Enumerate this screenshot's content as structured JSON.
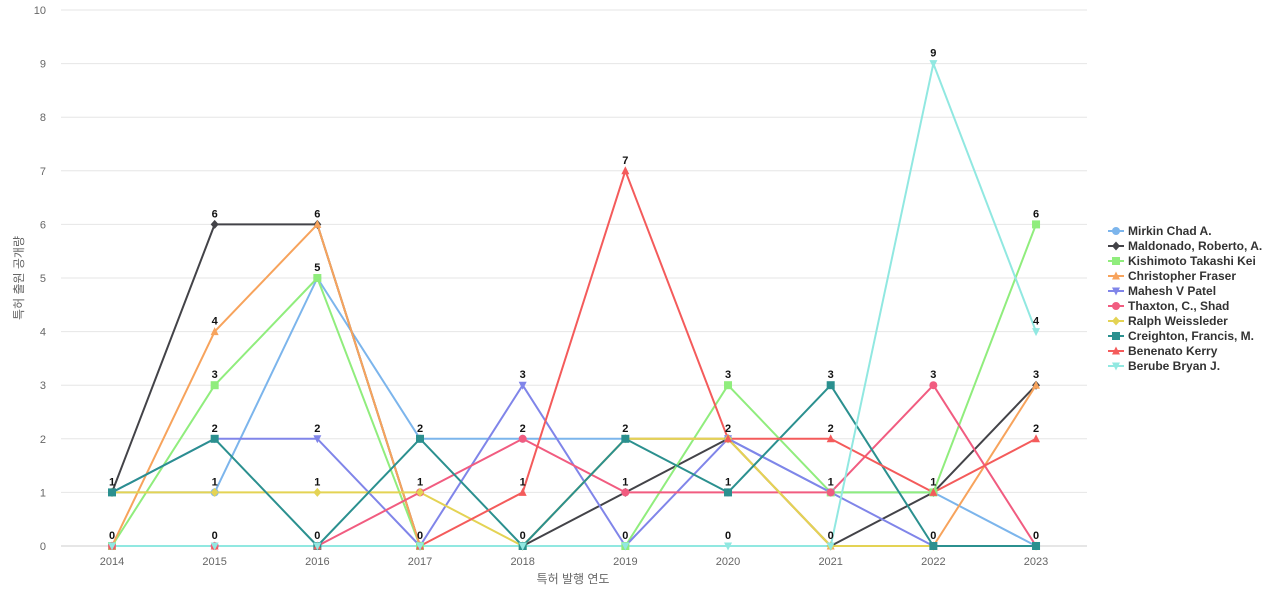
{
  "chart_data": {
    "type": "line",
    "title": "",
    "xlabel": "특허 발행 연도",
    "ylabel": "특허 출원 공개량",
    "ylim": [
      0,
      10
    ],
    "yticks": [
      0,
      1,
      2,
      3,
      4,
      5,
      6,
      7,
      8,
      9,
      10
    ],
    "categories": [
      "2014",
      "2015",
      "2016",
      "2017",
      "2018",
      "2019",
      "2020",
      "2021",
      "2022",
      "2023"
    ],
    "grid": true,
    "legend_position": "right",
    "series": [
      {
        "name": "Mirkin Chad A.",
        "color": "#7cb5ec",
        "marker": "circle",
        "values": [
          1,
          1,
          5,
          2,
          2,
          2,
          2,
          1,
          1,
          0
        ]
      },
      {
        "name": "Maldonado, Roberto, A.",
        "color": "#434348",
        "marker": "diamond",
        "values": [
          1,
          6,
          6,
          0,
          0,
          1,
          2,
          0,
          1,
          3
        ]
      },
      {
        "name": "Kishimoto Takashi Kei",
        "color": "#90ed7d",
        "marker": "square",
        "values": [
          0,
          3,
          5,
          0,
          0,
          0,
          3,
          1,
          1,
          6
        ]
      },
      {
        "name": "Christopher Fraser",
        "color": "#f7a35c",
        "marker": "triangle",
        "values": [
          0,
          4,
          6,
          0,
          0,
          2,
          2,
          0,
          0,
          3
        ]
      },
      {
        "name": "Mahesh V Patel",
        "color": "#8085e9",
        "marker": "triangle-down",
        "values": [
          1,
          2,
          2,
          0,
          3,
          0,
          2,
          1,
          0,
          0
        ]
      },
      {
        "name": "Thaxton, C., Shad",
        "color": "#f15c80",
        "marker": "circle",
        "values": [
          0,
          0,
          0,
          1,
          2,
          1,
          1,
          1,
          3,
          0
        ]
      },
      {
        "name": "Ralph Weissleder",
        "color": "#e4d354",
        "marker": "diamond",
        "values": [
          1,
          1,
          1,
          1,
          0,
          2,
          2,
          0,
          0,
          0
        ]
      },
      {
        "name": "Creighton, Francis, M.",
        "color": "#2b908f",
        "marker": "square",
        "values": [
          1,
          2,
          0,
          2,
          0,
          2,
          1,
          3,
          0,
          0
        ]
      },
      {
        "name": "Benenato Kerry",
        "color": "#f45b5b",
        "marker": "triangle",
        "values": [
          0,
          0,
          0,
          0,
          1,
          7,
          2,
          2,
          1,
          2
        ]
      },
      {
        "name": "Berube Bryan J.",
        "color": "#91e8e1",
        "marker": "triangle-down",
        "values": [
          0,
          0,
          0,
          0,
          0,
          0,
          0,
          0,
          9,
          4
        ]
      }
    ],
    "data_labels": [
      {
        "x": "2014",
        "y": 1,
        "text": "1"
      },
      {
        "x": "2014",
        "y": 0,
        "text": "0"
      },
      {
        "x": "2015",
        "y": 6,
        "text": "6"
      },
      {
        "x": "2015",
        "y": 4,
        "text": "4"
      },
      {
        "x": "2015",
        "y": 3,
        "text": "3"
      },
      {
        "x": "2015",
        "y": 2,
        "text": "2"
      },
      {
        "x": "2015",
        "y": 1,
        "text": "1"
      },
      {
        "x": "2015",
        "y": 0,
        "text": "0"
      },
      {
        "x": "2016",
        "y": 6,
        "text": "6"
      },
      {
        "x": "2016",
        "y": 5,
        "text": "5"
      },
      {
        "x": "2016",
        "y": 2,
        "text": "2"
      },
      {
        "x": "2016",
        "y": 1,
        "text": "1"
      },
      {
        "x": "2016",
        "y": 0,
        "text": "0"
      },
      {
        "x": "2017",
        "y": 2,
        "text": "2"
      },
      {
        "x": "2017",
        "y": 1,
        "text": "1"
      },
      {
        "x": "2017",
        "y": 0,
        "text": "0"
      },
      {
        "x": "2018",
        "y": 3,
        "text": "3"
      },
      {
        "x": "2018",
        "y": 2,
        "text": "2"
      },
      {
        "x": "2018",
        "y": 1,
        "text": "1"
      },
      {
        "x": "2018",
        "y": 0,
        "text": "0"
      },
      {
        "x": "2019",
        "y": 7,
        "text": "7"
      },
      {
        "x": "2019",
        "y": 2,
        "text": "2"
      },
      {
        "x": "2019",
        "y": 1,
        "text": "1"
      },
      {
        "x": "2019",
        "y": 0,
        "text": "0"
      },
      {
        "x": "2020",
        "y": 3,
        "text": "3"
      },
      {
        "x": "2020",
        "y": 2,
        "text": "2"
      },
      {
        "x": "2020",
        "y": 1,
        "text": "1"
      },
      {
        "x": "2020",
        "y": 0,
        "text": "0"
      },
      {
        "x": "2021",
        "y": 3,
        "text": "3"
      },
      {
        "x": "2021",
        "y": 2,
        "text": "2"
      },
      {
        "x": "2021",
        "y": 1,
        "text": "1"
      },
      {
        "x": "2021",
        "y": 0,
        "text": "0"
      },
      {
        "x": "2022",
        "y": 9,
        "text": "9"
      },
      {
        "x": "2022",
        "y": 3,
        "text": "3"
      },
      {
        "x": "2022",
        "y": 1,
        "text": "1"
      },
      {
        "x": "2022",
        "y": 0,
        "text": "0"
      },
      {
        "x": "2023",
        "y": 6,
        "text": "6"
      },
      {
        "x": "2023",
        "y": 4,
        "text": "4"
      },
      {
        "x": "2023",
        "y": 3,
        "text": "3"
      },
      {
        "x": "2023",
        "y": 2,
        "text": "2"
      },
      {
        "x": "2023",
        "y": 0,
        "text": "0"
      }
    ]
  }
}
